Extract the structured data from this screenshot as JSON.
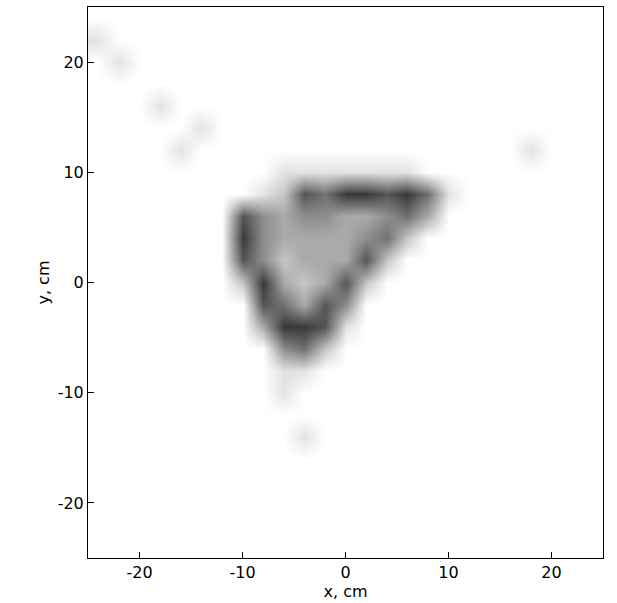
{
  "chart_data": {
    "type": "heatmap",
    "xlabel": "x, cm",
    "ylabel": "y, cm",
    "xlim": [
      -25,
      25
    ],
    "ylim": [
      -25,
      25
    ],
    "xticks": [
      -20,
      -10,
      0,
      10,
      20
    ],
    "yticks": [
      -20,
      -10,
      0,
      10,
      20
    ],
    "color": "#000000",
    "zlim": [
      0,
      9
    ],
    "x": [
      -24,
      -22,
      -20,
      -18,
      -16,
      -14,
      -12,
      -10,
      -8,
      -6,
      -4,
      -2,
      0,
      2,
      4,
      6,
      8,
      10,
      12,
      14,
      16,
      18,
      20,
      22,
      24
    ],
    "y": [
      -24,
      -22,
      -20,
      -18,
      -16,
      -14,
      -12,
      -10,
      -8,
      -6,
      -4,
      -2,
      0,
      2,
      4,
      6,
      8,
      10,
      12,
      14,
      16,
      18,
      20,
      22,
      24
    ],
    "z": [
      [
        0,
        0,
        0,
        0,
        0,
        0,
        0,
        0,
        0,
        0,
        0,
        0,
        0,
        0,
        0,
        0,
        0,
        0,
        0,
        0,
        0,
        0,
        0,
        0,
        0
      ],
      [
        0,
        0,
        0,
        0,
        0,
        0,
        0,
        0,
        0,
        0,
        0,
        0,
        0,
        0,
        0,
        0,
        0,
        0,
        0,
        0,
        0,
        0,
        0,
        0,
        0
      ],
      [
        0,
        0,
        0,
        0,
        0,
        0,
        0,
        0,
        0,
        0,
        0,
        0,
        0,
        0,
        0,
        0,
        0,
        0,
        0,
        0,
        0,
        0,
        0,
        0,
        0
      ],
      [
        0,
        0,
        0,
        0,
        0,
        0,
        0,
        0,
        0,
        0,
        0,
        0,
        0,
        0,
        0,
        0,
        0,
        0,
        0,
        0,
        0,
        0,
        0,
        0,
        0
      ],
      [
        0,
        0,
        0,
        0,
        0,
        0,
        0,
        0,
        0,
        0,
        0,
        0,
        0,
        0,
        0,
        0,
        0,
        0,
        0,
        0,
        0,
        0,
        0,
        0,
        0
      ],
      [
        0,
        0,
        0,
        0,
        0,
        0,
        0,
        0,
        0,
        0,
        1,
        0,
        0,
        0,
        0,
        0,
        0,
        0,
        0,
        0,
        0,
        0,
        0,
        0,
        0
      ],
      [
        0,
        0,
        0,
        0,
        0,
        0,
        0,
        0,
        0,
        0,
        0,
        0,
        0,
        0,
        0,
        0,
        0,
        0,
        0,
        0,
        0,
        0,
        0,
        0,
        0
      ],
      [
        0,
        0,
        0,
        0,
        0,
        0,
        0,
        0,
        0,
        1,
        0,
        0,
        0,
        0,
        0,
        0,
        0,
        0,
        0,
        0,
        0,
        0,
        0,
        0,
        0
      ],
      [
        0,
        0,
        0,
        0,
        0,
        0,
        0,
        0,
        0,
        1,
        1,
        0,
        0,
        0,
        0,
        0,
        0,
        0,
        0,
        0,
        0,
        0,
        0,
        0,
        0
      ],
      [
        0,
        0,
        0,
        0,
        0,
        0,
        0,
        0,
        0,
        4,
        5,
        2,
        0,
        0,
        0,
        0,
        0,
        0,
        0,
        0,
        0,
        0,
        0,
        0,
        0
      ],
      [
        0,
        0,
        0,
        0,
        0,
        0,
        0,
        0,
        3,
        7,
        7,
        6,
        1,
        0,
        0,
        0,
        0,
        0,
        0,
        0,
        0,
        0,
        0,
        0,
        0
      ],
      [
        0,
        0,
        0,
        0,
        0,
        0,
        0,
        0,
        6,
        5,
        3,
        6,
        4,
        0,
        0,
        0,
        0,
        0,
        0,
        0,
        0,
        0,
        0,
        0,
        0
      ],
      [
        0,
        0,
        0,
        0,
        0,
        0,
        0,
        2,
        7,
        3,
        2,
        3,
        6,
        2,
        0,
        0,
        0,
        0,
        0,
        0,
        0,
        0,
        0,
        0,
        0
      ],
      [
        0,
        0,
        0,
        0,
        0,
        0,
        0,
        6,
        4,
        2,
        3,
        3,
        3,
        6,
        2,
        0,
        0,
        0,
        0,
        0,
        0,
        0,
        0,
        0,
        0
      ],
      [
        0,
        0,
        0,
        0,
        0,
        0,
        0,
        7,
        4,
        3,
        3,
        3,
        3,
        4,
        5,
        2,
        0,
        0,
        0,
        0,
        0,
        0,
        0,
        0,
        0
      ],
      [
        0,
        0,
        0,
        0,
        0,
        0,
        0,
        6,
        4,
        3,
        4,
        4,
        3,
        3,
        4,
        5,
        3,
        0,
        0,
        0,
        0,
        0,
        0,
        0,
        0
      ],
      [
        0,
        0,
        0,
        0,
        0,
        0,
        0,
        0,
        1,
        2,
        6,
        5,
        7,
        7,
        6,
        7,
        5,
        1,
        0,
        0,
        0,
        0,
        0,
        0,
        0
      ],
      [
        0,
        0,
        0,
        0,
        0,
        0,
        0,
        0,
        0,
        1,
        1,
        1,
        1,
        1,
        1,
        1,
        0,
        0,
        0,
        0,
        0,
        0,
        0,
        0,
        0
      ],
      [
        0,
        0,
        0,
        0,
        1,
        0,
        0,
        0,
        0,
        0,
        0,
        0,
        0,
        0,
        0,
        0,
        0,
        0,
        0,
        0,
        0,
        1,
        0,
        0,
        0
      ],
      [
        0,
        0,
        0,
        0,
        0,
        1,
        0,
        0,
        0,
        0,
        0,
        0,
        0,
        0,
        0,
        0,
        0,
        0,
        0,
        0,
        0,
        0,
        0,
        0,
        0
      ],
      [
        0,
        0,
        0,
        1,
        0,
        0,
        0,
        0,
        0,
        0,
        0,
        0,
        0,
        0,
        0,
        0,
        0,
        0,
        0,
        0,
        0,
        0,
        0,
        0,
        0
      ],
      [
        0,
        0,
        0,
        0,
        0,
        0,
        0,
        0,
        0,
        0,
        0,
        0,
        0,
        0,
        0,
        0,
        0,
        0,
        0,
        0,
        0,
        0,
        0,
        0,
        0
      ],
      [
        0,
        1,
        0,
        0,
        0,
        0,
        0,
        0,
        0,
        0,
        0,
        0,
        0,
        0,
        0,
        0,
        0,
        0,
        0,
        0,
        0,
        0,
        0,
        0,
        0
      ],
      [
        1,
        0,
        0,
        0,
        0,
        0,
        0,
        0,
        0,
        0,
        0,
        0,
        0,
        0,
        0,
        0,
        0,
        0,
        0,
        0,
        0,
        0,
        0,
        0,
        0
      ],
      [
        0,
        0,
        0,
        0,
        0,
        0,
        0,
        0,
        0,
        0,
        0,
        0,
        0,
        0,
        0,
        0,
        0,
        0,
        0,
        0,
        0,
        0,
        0,
        0,
        0
      ]
    ]
  }
}
